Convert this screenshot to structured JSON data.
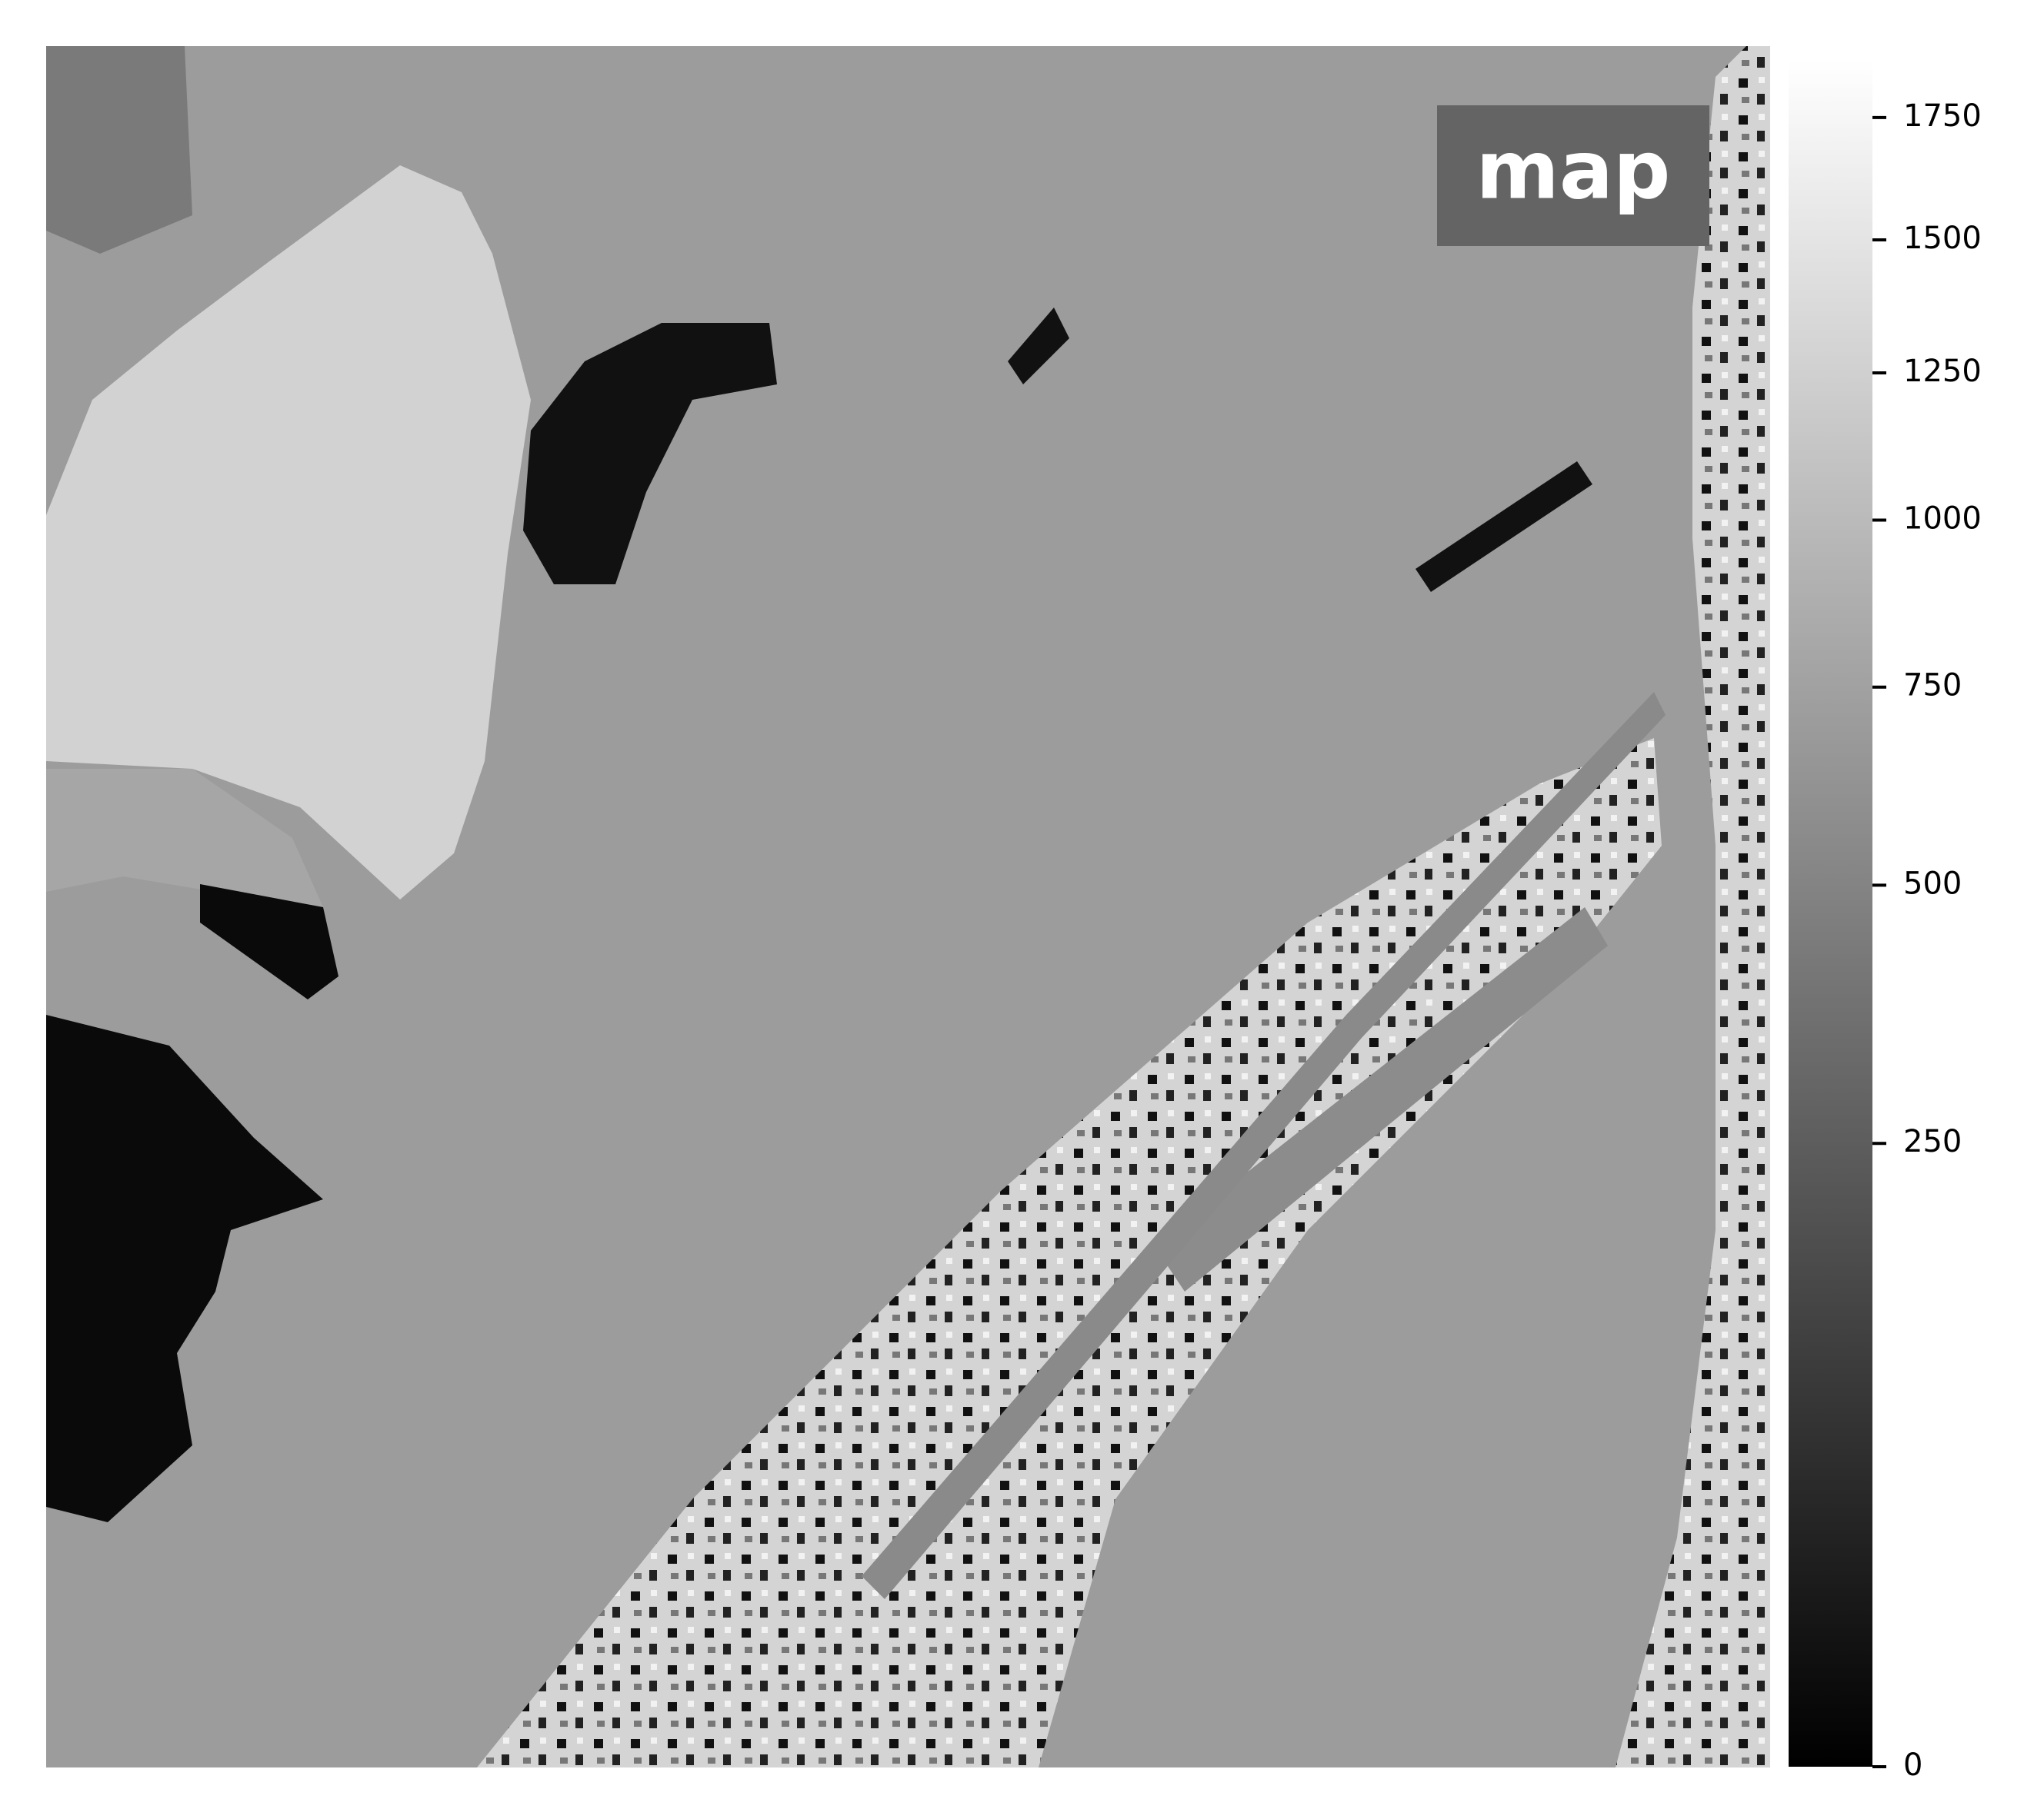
{
  "chart_data": {
    "type": "image",
    "label": "map",
    "cmap": "gray",
    "colorbar": {
      "clim": [
        0,
        1876
      ],
      "norm": {
        "type": "power",
        "gamma": 0.5
      },
      "ticks": [
        0,
        250,
        500,
        750,
        1000,
        1250,
        1500,
        1750
      ]
    }
  }
}
